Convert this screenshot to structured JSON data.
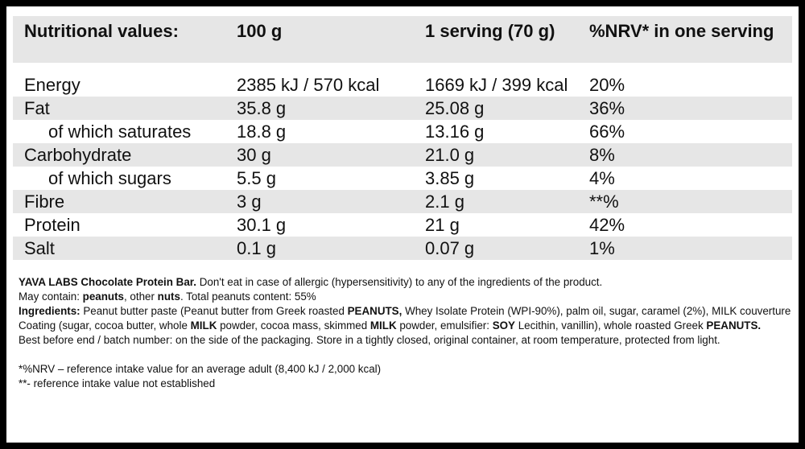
{
  "table": {
    "headers": [
      "Nutritional values:",
      "100 g",
      "1 serving (70 g)",
      "%NRV* in one serving"
    ],
    "rows": [
      {
        "name": "Energy",
        "per100": "2385 kJ / 570 kcal",
        "serving": "1669 kJ / 399 kcal",
        "nrv": "20%"
      },
      {
        "name": "Fat",
        "per100": "35.8 g",
        "serving": "25.08 g",
        "nrv": "36%"
      },
      {
        "name": "of which saturates",
        "per100": "18.8 g",
        "serving": "13.16 g",
        "nrv": "66%"
      },
      {
        "name": "Carbohydrate",
        "per100": "30 g",
        "serving": "21.0 g",
        "nrv": "8%"
      },
      {
        "name": "of which sugars",
        "per100": "5.5 g",
        "serving": "3.85 g",
        "nrv": "4%"
      },
      {
        "name": "Fibre",
        "per100": "3 g",
        "serving": "2.1 g",
        "nrv": "**%"
      },
      {
        "name": "Protein",
        "per100": "30.1 g",
        "serving": "21 g",
        "nrv": "42%"
      },
      {
        "name": "Salt",
        "per100": "0.1 g",
        "serving": "0.07 g",
        "nrv": "1%"
      }
    ]
  },
  "notes": {
    "product_name": "YAVA LABS Chocolate Protein Bar.",
    "allergy_warning": " Don't eat in case of allergic (hypersensitivity) to any of the ingredients of the product.",
    "may_contain_prefix": "May contain: ",
    "may_contain_peanuts": "peanuts",
    "may_contain_mid": ", other ",
    "may_contain_nuts": "nuts",
    "peanut_content": ". Total peanuts content: 55%",
    "ingredients_label": "Ingredients:",
    "ing_1": " Peanut butter paste (Peanut butter from Greek roasted ",
    "ing_peanuts": "PEANUTS,",
    "ing_2": " Whey Isolate Protein (WPI-90%), palm oil, sugar, caramel (2%), MILK couverture Coating (sugar, cocoa butter, whole ",
    "ing_milk1": "MILK",
    "ing_3": " powder, cocoa mass, skimmed ",
    "ing_milk2": "MILK",
    "ing_4": " powder, emulsifier: ",
    "ing_soy": "SOY",
    "ing_5": " Lecithin, vanillin), whole roasted Greek ",
    "ing_peanuts2": "PEANUTS.",
    "storage": "Best before end / batch number: on the side of the packaging. Store in a tightly closed, original container, at room temperature, protected from light.",
    "footnote_1": "*%NRV – reference intake value for an average adult (8,400 kJ / 2,000 kcal)",
    "footnote_2": "**- reference intake value not established"
  }
}
